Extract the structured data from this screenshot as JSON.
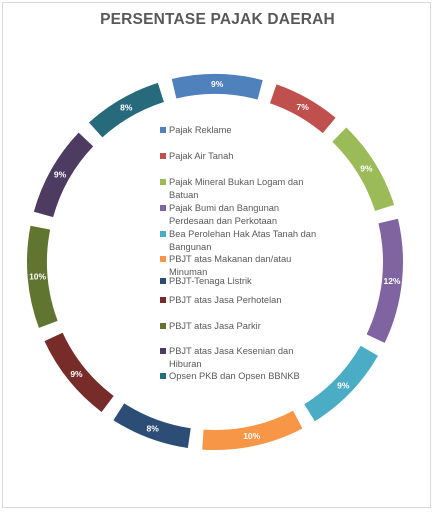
{
  "chart_data": {
    "type": "pie",
    "variant": "exploded-ring",
    "title": "PERSENTASE PAJAK DAERAH",
    "legend_position": "center",
    "slices": [
      {
        "label": "Pajak Reklame",
        "value": 9,
        "display": "9%",
        "color": "#4f81bd"
      },
      {
        "label": "Pajak Air Tanah",
        "value": 7,
        "display": "7%",
        "color": "#c0504d"
      },
      {
        "label": "Pajak Mineral Bukan Logam dan Batuan",
        "value": 9,
        "display": "9%",
        "color": "#9bbb59"
      },
      {
        "label": "Pajak Bumi dan Bangunan Perdesaan dan Perkotaan",
        "value": 12,
        "display": "12%",
        "color": "#8064a2"
      },
      {
        "label": "Bea Perolehan Hak Atas Tanah dan Bangunan",
        "value": 9,
        "display": "9%",
        "color": "#4bacc6"
      },
      {
        "label": "PBJT atas Makanan dan/atau Minuman",
        "value": 10,
        "display": "10%",
        "color": "#f79646"
      },
      {
        "label": "PBJT-Tenaga Listrik",
        "value": 8,
        "display": "8%",
        "color": "#2c4d75"
      },
      {
        "label": "PBJT atas Jasa Perhotelan",
        "value": 9,
        "display": "9%",
        "color": "#772c2a"
      },
      {
        "label": "PBJT atas Jasa Parkir",
        "value": 10,
        "display": "10%",
        "color": "#5f7530"
      },
      {
        "label": "PBJT atas Jasa Kesenian dan Hiburan",
        "value": 9,
        "display": "9%",
        "color": "#4d3b62"
      },
      {
        "label": "Opsen PKB dan Opsen BBNKB",
        "value": 8,
        "display": "8%",
        "color": "#276a7c"
      }
    ]
  },
  "legend": {
    "items": [
      {
        "line1": "Pajak Reklame",
        "line2": ""
      },
      {
        "line1": "Pajak Air Tanah",
        "line2": ""
      },
      {
        "line1": "Pajak Mineral Bukan Logam dan",
        "line2": "Batuan"
      },
      {
        "line1": "Pajak Bumi dan Bangunan",
        "line2": "Perdesaan dan Perkotaan"
      },
      {
        "line1": "Bea Perolehan Hak Atas Tanah dan",
        "line2": "Bangunan"
      },
      {
        "line1": "PBJT atas Makanan dan/atau",
        "line2": "Minuman"
      },
      {
        "line1": "PBJT-Tenaga Listrik",
        "line2": ""
      },
      {
        "line1": "PBJT atas Jasa Perhotelan",
        "line2": ""
      },
      {
        "line1": "PBJT atas Jasa Parkir",
        "line2": ""
      },
      {
        "line1": "PBJT atas Jasa Kesenian dan",
        "line2": "Hiburan"
      },
      {
        "line1": "Opsen PKB dan Opsen BBNKB",
        "line2": ""
      }
    ]
  }
}
